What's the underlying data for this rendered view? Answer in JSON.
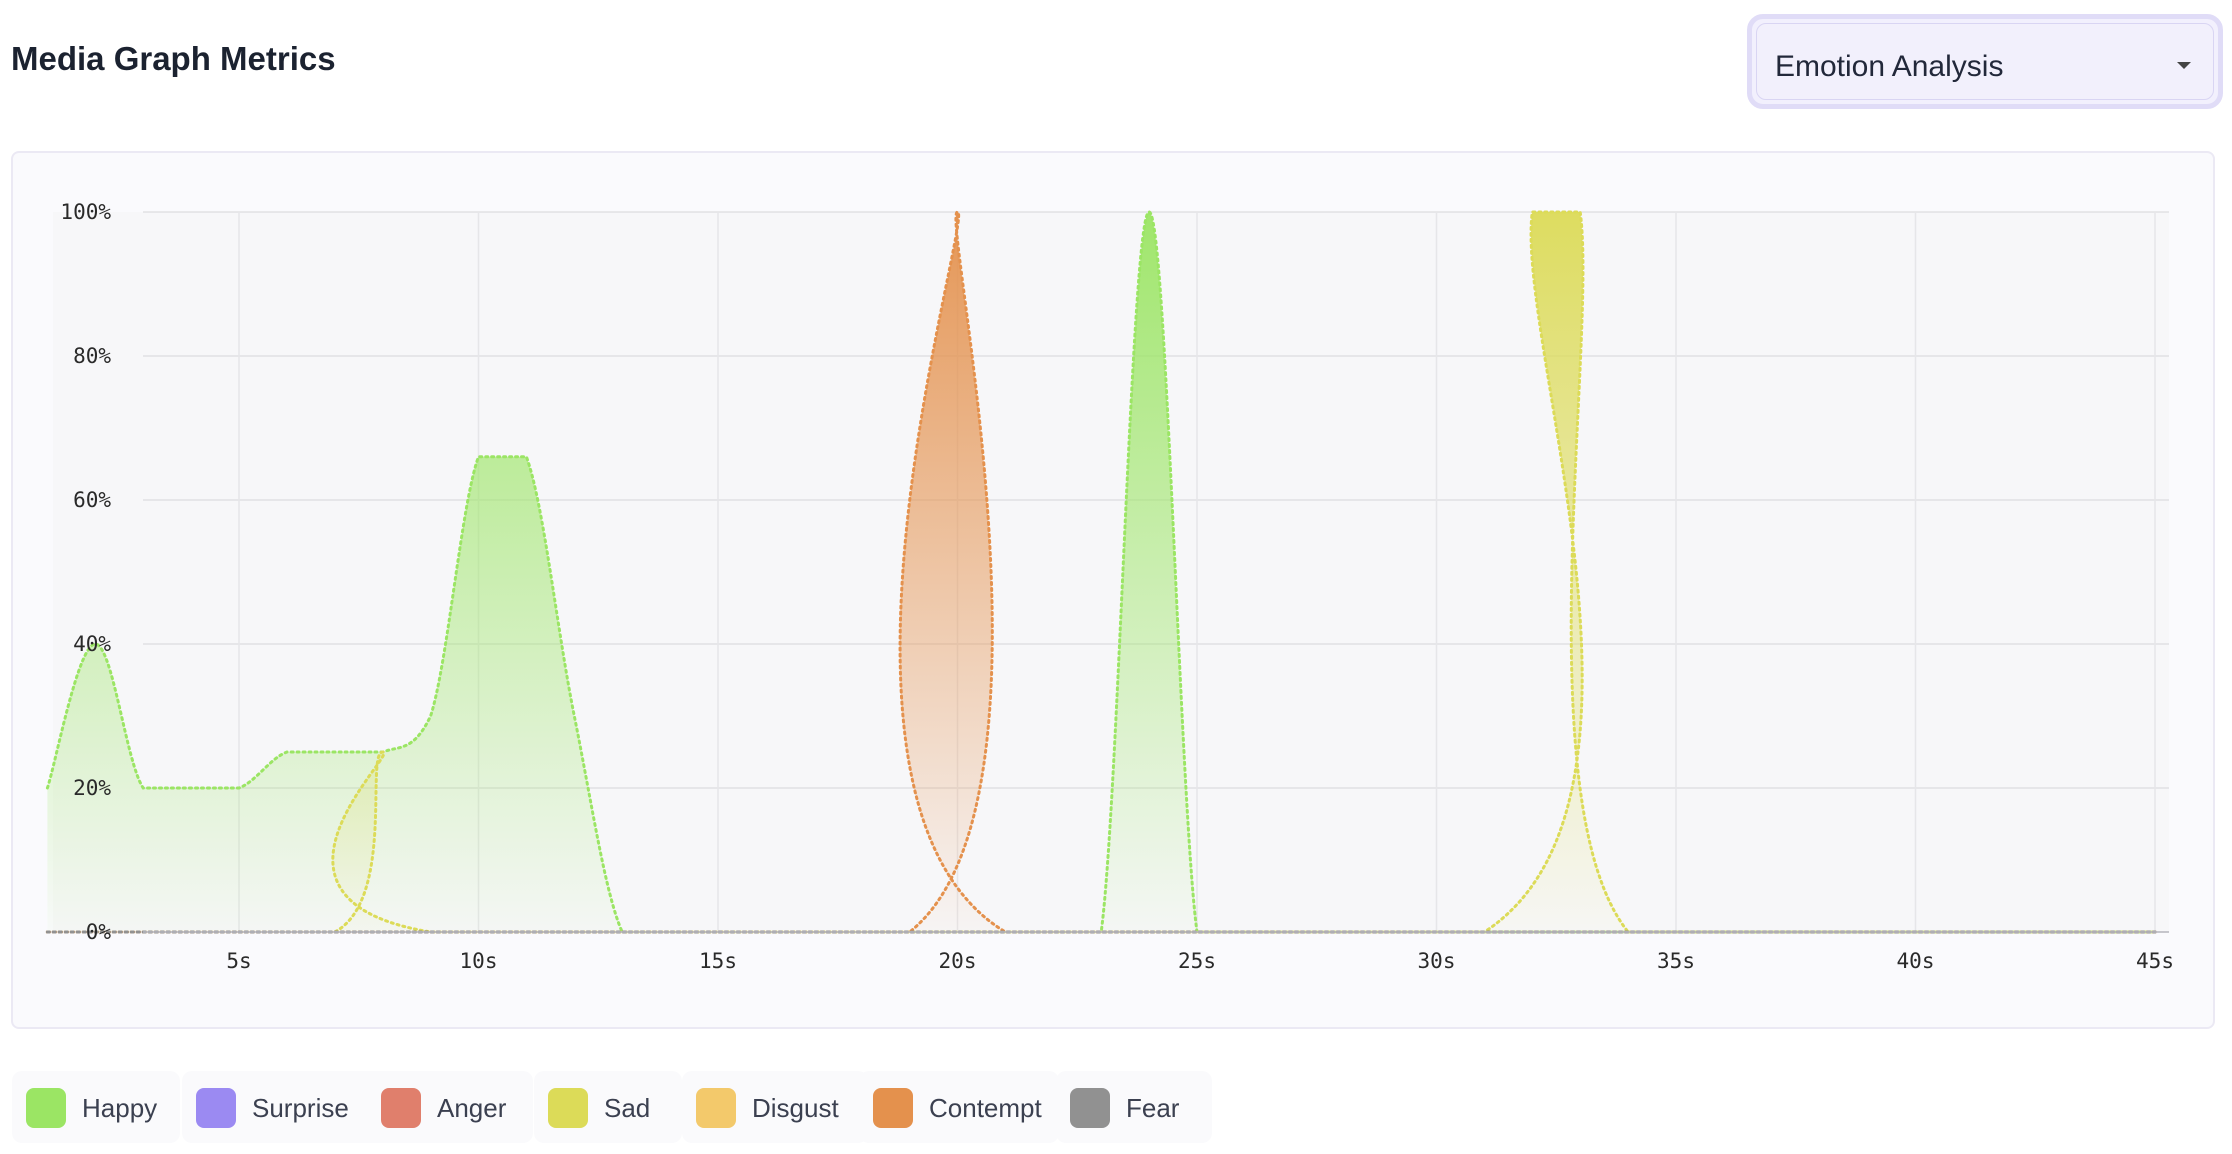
{
  "header": {
    "title": "Media Graph Metrics",
    "dropdown": {
      "selected": "Emotion Analysis",
      "icon": "caret-down-icon"
    }
  },
  "chart_data": {
    "type": "area",
    "title": "",
    "xlabel": "",
    "ylabel": "",
    "x_unit": "s",
    "x_range": [
      1,
      45
    ],
    "ylim": [
      0,
      100
    ],
    "y_ticks": [
      "0%",
      "20%",
      "40%",
      "60%",
      "80%",
      "100%"
    ],
    "y_tick_values": [
      0,
      20,
      40,
      60,
      80,
      100
    ],
    "x_ticks": [
      "5s",
      "10s",
      "15s",
      "20s",
      "25s",
      "30s",
      "35s",
      "40s",
      "45s"
    ],
    "x_tick_values": [
      5,
      10,
      15,
      20,
      25,
      30,
      35,
      40,
      45
    ],
    "grid": true,
    "legend_position": "bottom-left",
    "series": [
      {
        "name": "Happy",
        "color": "#9be564",
        "points": [
          [
            1,
            20
          ],
          [
            2,
            40
          ],
          [
            3,
            20
          ],
          [
            4,
            20
          ],
          [
            5,
            20
          ],
          [
            6,
            25
          ],
          [
            7,
            25
          ],
          [
            8,
            25
          ],
          [
            9,
            30
          ],
          [
            10,
            66
          ],
          [
            11,
            66
          ],
          [
            12,
            30
          ],
          [
            13,
            0
          ],
          [
            14,
            0
          ],
          [
            15,
            0
          ],
          [
            16,
            0
          ],
          [
            17,
            0
          ],
          [
            18,
            0
          ],
          [
            19,
            0
          ],
          [
            20,
            0
          ],
          [
            21,
            0
          ],
          [
            22,
            0
          ],
          [
            23,
            0
          ],
          [
            24,
            100
          ],
          [
            25,
            0
          ],
          [
            26,
            0
          ],
          [
            30,
            0
          ],
          [
            35,
            0
          ],
          [
            40,
            0
          ],
          [
            45,
            0
          ]
        ]
      },
      {
        "name": "Surprise",
        "color": "#9b8af2",
        "points": [
          [
            1,
            0
          ],
          [
            45,
            0
          ]
        ]
      },
      {
        "name": "Anger",
        "color": "#e07f6c",
        "points": [
          [
            1,
            0
          ],
          [
            45,
            0
          ]
        ]
      },
      {
        "name": "Sad",
        "color": "#dcdb58",
        "points": [
          [
            1,
            0
          ],
          [
            7,
            0
          ],
          [
            8,
            25
          ],
          [
            9,
            0
          ],
          [
            31,
            0
          ],
          [
            32,
            100
          ],
          [
            33,
            100
          ],
          [
            34,
            0
          ],
          [
            45,
            0
          ]
        ]
      },
      {
        "name": "Disgust",
        "color": "#f3c96b",
        "points": [
          [
            1,
            0
          ],
          [
            45,
            0
          ]
        ]
      },
      {
        "name": "Contempt",
        "color": "#e4914d",
        "points": [
          [
            1,
            0
          ],
          [
            19,
            0
          ],
          [
            20,
            100
          ],
          [
            21,
            0
          ],
          [
            45,
            0
          ]
        ]
      },
      {
        "name": "Fear",
        "color": "#919191",
        "points": [
          [
            1,
            0
          ],
          [
            45,
            0
          ]
        ]
      }
    ]
  },
  "legend": [
    {
      "label": "Happy",
      "color": "#9be564"
    },
    {
      "label": "Surprise",
      "color": "#9b8af2"
    },
    {
      "label": "Anger",
      "color": "#e07f6c"
    },
    {
      "label": "Sad",
      "color": "#dcdb58"
    },
    {
      "label": "Disgust",
      "color": "#f3c96b"
    },
    {
      "label": "Contempt",
      "color": "#e4914d"
    },
    {
      "label": "Fear",
      "color": "#919191"
    }
  ]
}
